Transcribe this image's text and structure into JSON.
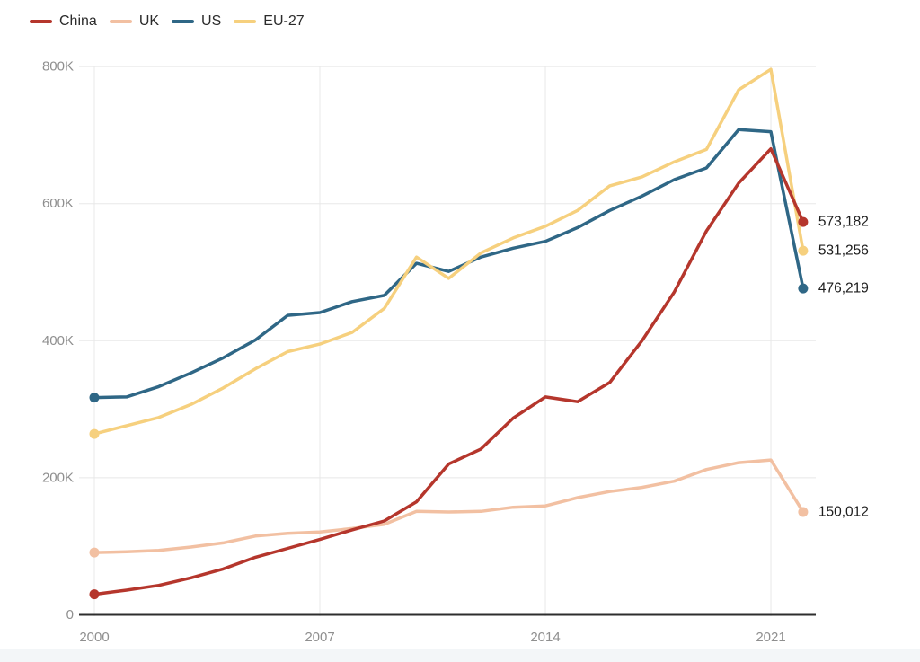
{
  "chart_data": {
    "type": "line",
    "title": "",
    "xlabel": "",
    "ylabel": "",
    "x": [
      2000,
      2001,
      2002,
      2003,
      2004,
      2005,
      2006,
      2007,
      2008,
      2009,
      2010,
      2011,
      2012,
      2013,
      2014,
      2015,
      2016,
      2017,
      2018,
      2019,
      2020,
      2021,
      2022
    ],
    "series": [
      {
        "name": "China",
        "color": "#b5362c",
        "end_label": "573,182",
        "values": [
          30000,
          36000,
          43000,
          54000,
          67000,
          84000,
          97000,
          110000,
          124000,
          137000,
          165000,
          220000,
          242000,
          287000,
          318000,
          311000,
          339000,
          400000,
          471000,
          560000,
          630000,
          680000,
          573182
        ]
      },
      {
        "name": "UK",
        "color": "#f2c0a2",
        "end_label": "150,012",
        "values": [
          91000,
          92000,
          94000,
          99000,
          105000,
          115000,
          119000,
          121000,
          126000,
          132000,
          151000,
          150000,
          151000,
          157000,
          159000,
          171000,
          180000,
          186000,
          195000,
          212000,
          222000,
          226000,
          150012
        ]
      },
      {
        "name": "US",
        "color": "#2f6786",
        "end_label": "476,219",
        "values": [
          317000,
          318000,
          333000,
          353000,
          375000,
          401000,
          437000,
          441000,
          457000,
          466000,
          513000,
          501000,
          522000,
          535000,
          545000,
          565000,
          590000,
          611000,
          635000,
          652000,
          708000,
          705000,
          476219
        ]
      },
      {
        "name": "EU-27",
        "color": "#f6d07e",
        "end_label": "531,256",
        "values": [
          264000,
          276000,
          288000,
          307000,
          331000,
          359000,
          384000,
          395000,
          412000,
          447000,
          522000,
          491000,
          528000,
          550000,
          567000,
          590000,
          626000,
          639000,
          661000,
          679000,
          766000,
          796000,
          531256
        ]
      }
    ],
    "x_ticks": [
      {
        "value": 2000,
        "label": "2000"
      },
      {
        "value": 2007,
        "label": "2007"
      },
      {
        "value": 2014,
        "label": "2014"
      },
      {
        "value": 2021,
        "label": "2021"
      }
    ],
    "y_ticks": [
      {
        "value": 0,
        "label": "0"
      },
      {
        "value": 200000,
        "label": "200K"
      },
      {
        "value": 400000,
        "label": "400K"
      },
      {
        "value": 600000,
        "label": "600K"
      },
      {
        "value": 800000,
        "label": "800K"
      }
    ],
    "xlim": [
      2000,
      2022
    ],
    "ylim": [
      0,
      800000
    ],
    "grid": true,
    "legend_position": "top-left"
  },
  "colors": {
    "axis_line": "#2e2e2e",
    "gridline": "#e8e8e8",
    "tick_label": "#8f8f8f",
    "end_value_label": "#1d1d1d",
    "legend_text": "#2b2b2b",
    "background": "#ffffff",
    "footer_band": "#f3f6f8"
  }
}
